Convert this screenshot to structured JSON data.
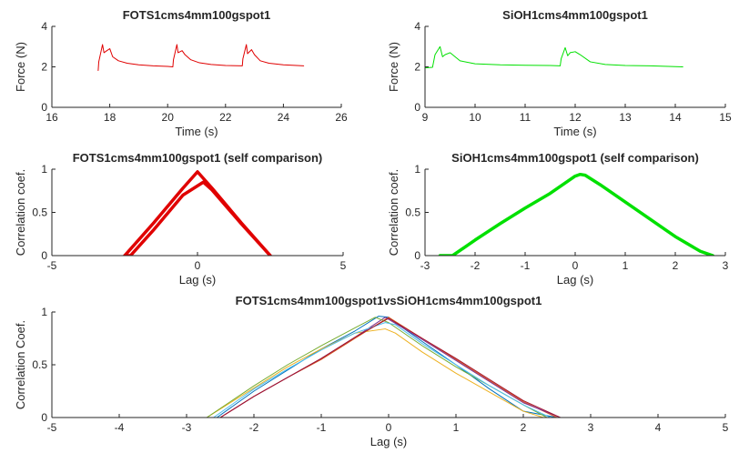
{
  "chart_data": [
    {
      "type": "line",
      "title": "FOTS1cms4mm100gspot1",
      "xlabel": "Time (s)",
      "ylabel": "Force (N)",
      "xlim": [
        16,
        26
      ],
      "ylim": [
        0,
        4
      ],
      "xticks": [
        16,
        18,
        20,
        22,
        24,
        26
      ],
      "yticks": [
        0,
        2,
        4
      ],
      "grid": false,
      "series": [
        {
          "color": "#e00000",
          "width": 1,
          "x": [
            17.6,
            17.62,
            17.75,
            17.8,
            17.9,
            18.0,
            18.1,
            18.3,
            18.6,
            19.0,
            19.5,
            20.0,
            20.18,
            20.2,
            20.32,
            20.36,
            20.5,
            20.6,
            20.8,
            21.1,
            21.5,
            22.0,
            22.58,
            22.6,
            22.72,
            22.76,
            22.9,
            23.0,
            23.2,
            23.5,
            24.0,
            24.7
          ],
          "y": [
            1.82,
            2.25,
            3.1,
            2.7,
            2.8,
            2.9,
            2.5,
            2.3,
            2.18,
            2.1,
            2.05,
            2.02,
            2.0,
            2.35,
            3.1,
            2.7,
            2.8,
            2.6,
            2.35,
            2.2,
            2.12,
            2.07,
            2.05,
            2.4,
            3.1,
            2.65,
            2.85,
            2.6,
            2.3,
            2.18,
            2.1,
            2.05
          ]
        }
      ]
    },
    {
      "type": "line",
      "title": "SiOH1cms4mm100gspot1",
      "xlabel": "Time (s)",
      "ylabel": "Force (N)",
      "xlim": [
        9,
        15
      ],
      "ylim": [
        0,
        4
      ],
      "xticks": [
        9,
        10,
        11,
        12,
        13,
        14,
        15
      ],
      "yticks": [
        0,
        2,
        4
      ],
      "grid": false,
      "series": [
        {
          "color": "#00e000",
          "width": 1,
          "x": [
            9.0,
            9.15,
            9.2,
            9.3,
            9.35,
            9.4,
            9.5,
            9.55,
            9.7,
            10.0,
            10.5,
            11.0,
            11.5,
            11.7,
            11.72,
            11.8,
            11.85,
            11.9,
            12.0,
            12.1,
            12.3,
            12.6,
            13.0,
            13.5,
            14.15
          ],
          "y": [
            1.95,
            1.98,
            2.6,
            3.0,
            2.5,
            2.6,
            2.7,
            2.6,
            2.3,
            2.15,
            2.1,
            2.08,
            2.07,
            2.05,
            2.4,
            2.95,
            2.55,
            2.7,
            2.75,
            2.6,
            2.25,
            2.12,
            2.07,
            2.05,
            2.0
          ]
        }
      ]
    },
    {
      "type": "line",
      "title": "FOTS1cms4mm100gspot1 (self comparison)",
      "xlabel": "Lag (s)",
      "ylabel": "Correlation coef.",
      "xlim": [
        -5,
        5
      ],
      "ylim": [
        0,
        1
      ],
      "xticks": [
        -5,
        0,
        5
      ],
      "yticks": [
        0,
        0.5,
        1
      ],
      "grid": false,
      "series": [
        {
          "color": "#e00000",
          "width": 3.5,
          "x": [
            -2.5,
            -1.5,
            -0.5,
            0.0,
            0.5,
            1.5,
            2.5
          ],
          "y": [
            0.0,
            0.38,
            0.78,
            0.97,
            0.78,
            0.38,
            0.0
          ]
        },
        {
          "color": "#e00000",
          "width": 3.5,
          "x": [
            -2.3,
            -1.5,
            -0.5,
            0.2,
            0.5,
            1.5,
            2.5
          ],
          "y": [
            0.0,
            0.3,
            0.7,
            0.85,
            0.76,
            0.37,
            0.0
          ]
        },
        {
          "color": "#e00000",
          "width": 3.5,
          "x": [
            -2.5,
            -2.3
          ],
          "y": [
            0.0,
            0.0
          ]
        }
      ]
    },
    {
      "type": "line",
      "title": "SiOH1cms4mm100gspot1 (self comparison)",
      "xlabel": "Lag (s)",
      "ylabel": "Correlation coef.",
      "xlim": [
        -3,
        3
      ],
      "ylim": [
        0,
        1
      ],
      "xticks": [
        -3,
        -2,
        -1,
        0,
        1,
        2,
        3
      ],
      "yticks": [
        0,
        0.5,
        1
      ],
      "grid": false,
      "series": [
        {
          "color": "#00e000",
          "width": 3.5,
          "x": [
            -2.7,
            -2.45,
            -2.0,
            -1.5,
            -1.0,
            -0.5,
            0.0,
            0.1,
            0.2,
            0.5,
            1.0,
            1.5,
            2.0,
            2.5,
            2.75
          ],
          "y": [
            0.0,
            0.0,
            0.18,
            0.37,
            0.55,
            0.72,
            0.92,
            0.94,
            0.93,
            0.82,
            0.62,
            0.42,
            0.22,
            0.05,
            0.0
          ]
        }
      ]
    },
    {
      "type": "line",
      "title": "FOTS1cms4mm100gspot1vsSiOH1cms4mm100gspot1",
      "xlabel": "Lag (s)",
      "ylabel": "Correlation Coef.",
      "xlim": [
        -5,
        5
      ],
      "ylim": [
        0,
        1
      ],
      "xticks": [
        -5,
        -4,
        -3,
        -2,
        -1,
        0,
        1,
        2,
        3,
        4,
        5
      ],
      "yticks": [
        0,
        0.5,
        1
      ],
      "grid": false,
      "series": [
        {
          "color": "#0072bd",
          "width": 1,
          "x": [
            -2.55,
            -2.0,
            -1.5,
            -1.0,
            -0.5,
            -0.15,
            0.0,
            0.1,
            0.5,
            1.0,
            1.5,
            2.0,
            2.5,
            2.6
          ],
          "y": [
            0.0,
            0.25,
            0.45,
            0.65,
            0.82,
            0.96,
            0.95,
            0.9,
            0.72,
            0.5,
            0.27,
            0.06,
            0.0,
            0.0
          ]
        },
        {
          "color": "#d95319",
          "width": 1,
          "x": [
            -2.5,
            -2.0,
            -1.5,
            -1.0,
            -0.5,
            0.0,
            0.5,
            1.0,
            1.5,
            2.0,
            2.5,
            2.6
          ],
          "y": [
            0.0,
            0.2,
            0.38,
            0.55,
            0.75,
            0.95,
            0.75,
            0.55,
            0.35,
            0.15,
            0.0,
            0.0
          ]
        },
        {
          "color": "#edb120",
          "width": 1,
          "x": [
            -2.7,
            -2.0,
            -1.5,
            -1.0,
            -0.5,
            -0.05,
            0.1,
            0.5,
            1.0,
            1.5,
            2.0,
            2.3
          ],
          "y": [
            0.0,
            0.28,
            0.48,
            0.65,
            0.8,
            0.84,
            0.8,
            0.62,
            0.42,
            0.24,
            0.06,
            0.0
          ]
        },
        {
          "color": "#7e2f8e",
          "width": 1,
          "x": [
            -2.5,
            -2.0,
            -1.5,
            -1.0,
            -0.5,
            -0.05,
            0.0,
            0.5,
            1.0,
            1.5,
            2.0,
            2.55,
            2.65
          ],
          "y": [
            0.0,
            0.2,
            0.38,
            0.56,
            0.76,
            0.95,
            0.93,
            0.74,
            0.54,
            0.34,
            0.14,
            0.0,
            0.0
          ]
        },
        {
          "color": "#77ac30",
          "width": 1,
          "x": [
            -2.7,
            -2.0,
            -1.5,
            -1.0,
            -0.5,
            -0.2,
            0.0,
            0.5,
            1.0,
            1.5,
            2.0,
            2.35
          ],
          "y": [
            0.0,
            0.3,
            0.5,
            0.68,
            0.85,
            0.95,
            0.9,
            0.68,
            0.48,
            0.3,
            0.12,
            0.0
          ]
        },
        {
          "color": "#4dbeee",
          "width": 1,
          "x": [
            -2.6,
            -2.0,
            -1.5,
            -1.0,
            -0.5,
            -0.05,
            0.1,
            0.5,
            1.0,
            1.5,
            2.0,
            2.4
          ],
          "y": [
            0.0,
            0.27,
            0.46,
            0.64,
            0.8,
            0.9,
            0.88,
            0.7,
            0.5,
            0.3,
            0.12,
            0.0
          ]
        },
        {
          "color": "#a2142f",
          "width": 1,
          "x": [
            -2.5,
            -2.0,
            -1.5,
            -1.0,
            -0.5,
            0.0,
            0.5,
            1.0,
            1.5,
            2.0,
            2.55,
            2.6
          ],
          "y": [
            0.0,
            0.2,
            0.38,
            0.56,
            0.76,
            0.94,
            0.75,
            0.56,
            0.36,
            0.16,
            0.0,
            0.0
          ]
        }
      ]
    }
  ]
}
